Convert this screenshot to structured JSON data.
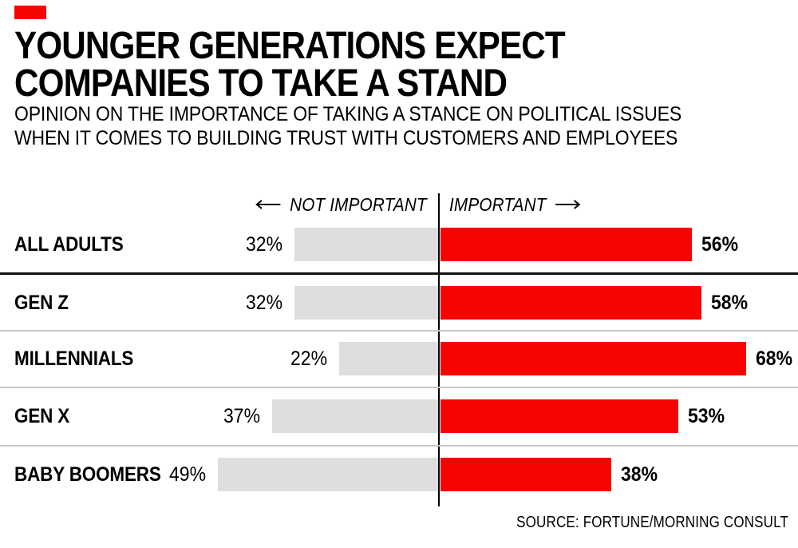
{
  "colors": {
    "bar_red": "#F50400",
    "bar_gray": "#DEDEDE",
    "axis_line": "#000000",
    "divider_strong": "#111111",
    "divider_light": "#C8C8C8",
    "text": "#000000"
  },
  "chart_data": {
    "type": "bar",
    "variant": "diverging-horizontal",
    "title_lines": [
      "YOUNGER GENERATIONS EXPECT",
      "COMPANIES TO TAKE A STAND"
    ],
    "subtitle_lines": [
      "OPINION ON THE IMPORTANCE OF TAKING A STANCE ON POLITICAL ISSUES",
      "WHEN IT COMES TO BUILDING TRUST WITH CUSTOMERS AND EMPLOYEES"
    ],
    "axis_labels": {
      "left": "NOT IMPORTANT",
      "right": "IMPORTANT"
    },
    "categories": [
      "ALL ADULTS",
      "GEN Z",
      "MILLENNIALS",
      "GEN X",
      "BABY BOOMERS"
    ],
    "series": [
      {
        "name": "NOT IMPORTANT",
        "side": "left",
        "color": "#DEDEDE",
        "values": [
          32,
          32,
          22,
          37,
          49
        ]
      },
      {
        "name": "IMPORTANT",
        "side": "right",
        "color": "#F50400",
        "values": [
          56,
          58,
          68,
          53,
          38
        ]
      }
    ],
    "value_suffix": "%",
    "xlim": [
      0,
      70
    ],
    "gridlines": false,
    "legend_position": "top-split-over-axis",
    "source": "SOURCE: FORTUNE/MORNING CONSULT"
  }
}
